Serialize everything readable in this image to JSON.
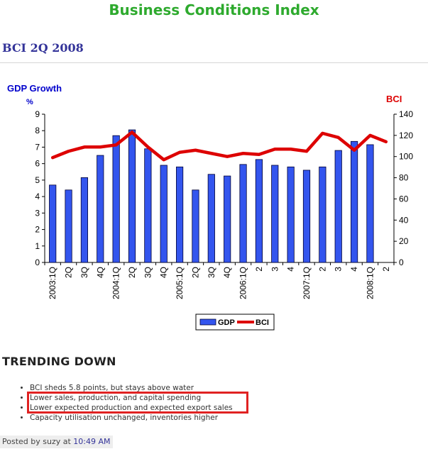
{
  "page": {
    "title": "Business Conditions Index",
    "post_title": "BCI 2Q 2008"
  },
  "chart_data": {
    "type": "bar",
    "left_axis_title": "GDP Growth",
    "left_axis_unit": "%",
    "right_axis_title": "BCI",
    "categories": [
      "2003:1Q",
      "2Q",
      "3Q",
      "4Q",
      "2004:1Q",
      "2Q",
      "3Q",
      "4Q",
      "2005:1Q",
      "2Q",
      "3Q",
      "4Q",
      "2006:1Q",
      "2",
      "3",
      "4",
      "2007:1Q",
      "2",
      "3",
      "4",
      "2008:1Q",
      "2"
    ],
    "series": [
      {
        "name": "GDP",
        "type": "bar",
        "axis": "left",
        "color": "#3355ee",
        "values": [
          4.7,
          4.4,
          5.15,
          6.5,
          7.7,
          8.05,
          6.9,
          5.9,
          5.8,
          4.4,
          5.35,
          5.25,
          5.95,
          6.25,
          5.9,
          5.8,
          5.6,
          5.8,
          6.8,
          7.35,
          7.15,
          null
        ]
      },
      {
        "name": "BCI",
        "type": "line",
        "axis": "right",
        "color": "#dd0000",
        "values": [
          99,
          105,
          109,
          109,
          111,
          123,
          109,
          97,
          104,
          106,
          103,
          100,
          103,
          102,
          107,
          107,
          105,
          122,
          118,
          106,
          120,
          114
        ]
      }
    ],
    "ylim_left": [
      0,
      9
    ],
    "yticks_left": [
      0,
      1,
      2,
      3,
      4,
      5,
      6,
      7,
      8,
      9
    ],
    "ylim_right": [
      0,
      140
    ],
    "yticks_right": [
      0,
      20,
      40,
      60,
      80,
      100,
      120,
      140
    ],
    "grid": false,
    "legend_position": "bottom-center"
  },
  "section": {
    "heading": "TRENDING DOWN",
    "bullets": [
      "BCI sheds 5.8 points, but stays above water",
      "Lower sales, production, and capital spending",
      "Lower expected production and expected export sales",
      "Capacity utilisation unchanged, inventories higher"
    ],
    "highlight_color": "#e02222"
  },
  "footer": {
    "posted_prefix": "Posted by suzy at",
    "posted_time": "10:49 AM"
  }
}
